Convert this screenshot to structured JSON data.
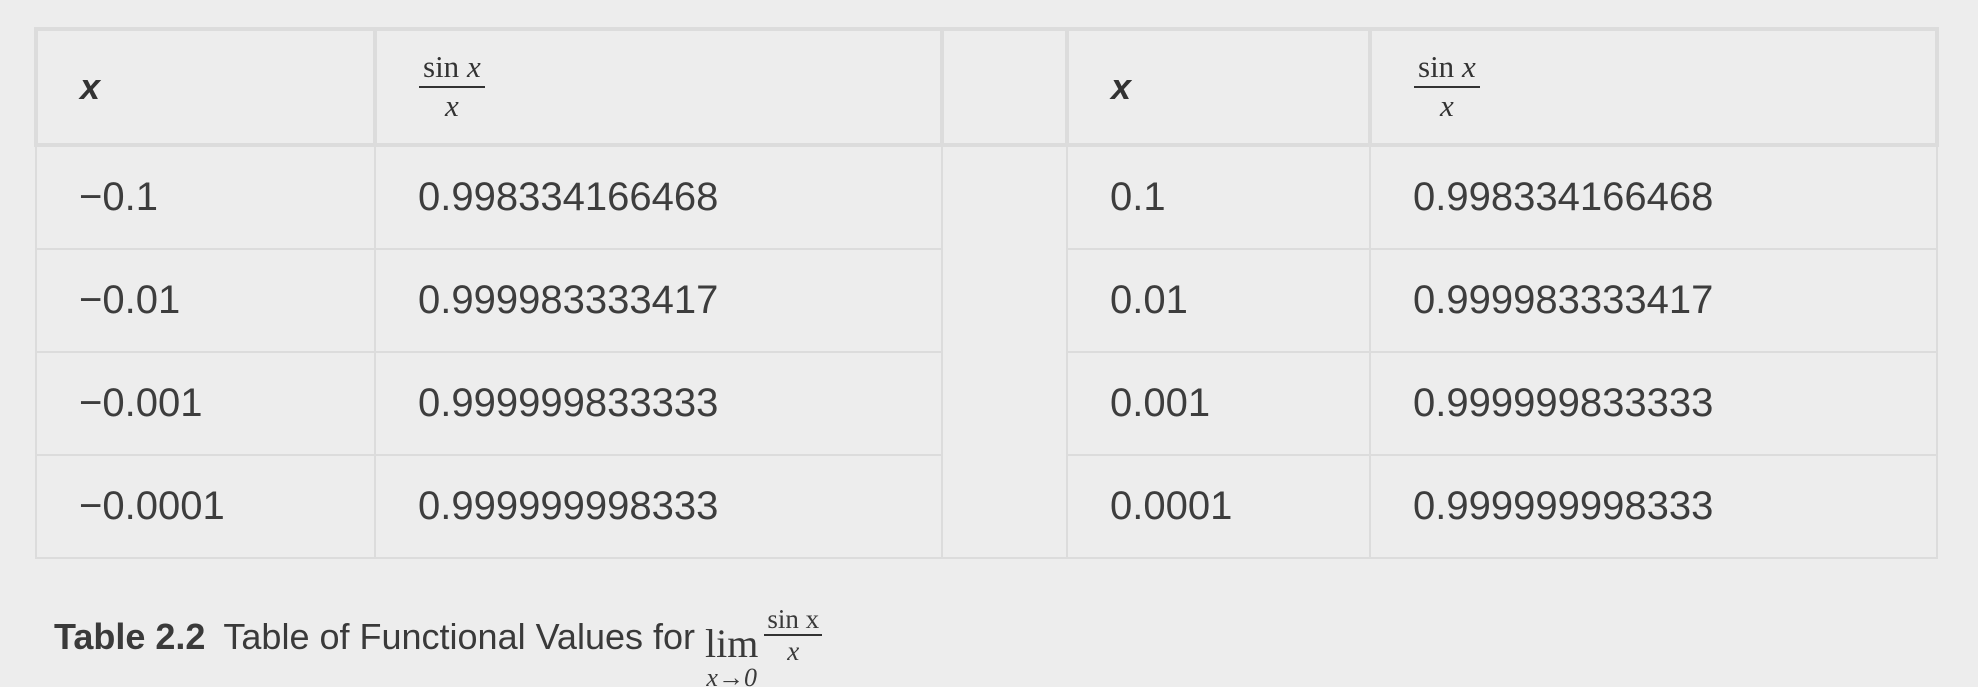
{
  "table": {
    "headers": {
      "x_left": "x",
      "func_left": {
        "numerator_fn": "sin",
        "numerator_var": "x",
        "denominator": "x"
      },
      "x_right": "x",
      "func_right": {
        "numerator_fn": "sin",
        "numerator_var": "x",
        "denominator": "x"
      }
    },
    "rows": [
      {
        "x_neg": "−0.1",
        "f_neg": "0.998334166468",
        "x_pos": "0.1",
        "f_pos": "0.998334166468"
      },
      {
        "x_neg": "−0.01",
        "f_neg": "0.999983333417",
        "x_pos": "0.01",
        "f_pos": "0.999983333417"
      },
      {
        "x_neg": "−0.001",
        "f_neg": "0.999999833333",
        "x_pos": "0.001",
        "f_pos": "0.999999833333"
      },
      {
        "x_neg": "−0.0001",
        "f_neg": "0.999999998333",
        "x_pos": "0.0001",
        "f_pos": "0.999999998333"
      }
    ]
  },
  "caption": {
    "label": "Table  2.2",
    "text": "Table of Functional Values for",
    "lim_word": "lim",
    "lim_sub": "x→0",
    "frac_numerator": "sin x",
    "frac_denominator": "x"
  },
  "colors": {
    "background": "#ededed",
    "border": "#dcdcdc",
    "text": "#3a3a3a"
  }
}
